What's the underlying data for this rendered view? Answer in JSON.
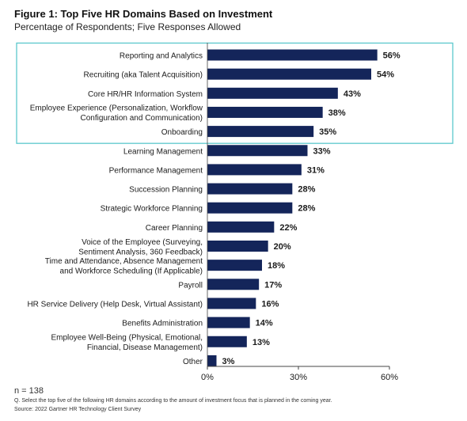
{
  "figure": {
    "title": "Figure 1: Top Five HR Domains Based on Investment",
    "subtitle": "Percentage of Respondents; Five Responses Allowed"
  },
  "chart_data": {
    "type": "bar",
    "orientation": "horizontal",
    "categories": [
      [
        "Reporting and Analytics"
      ],
      [
        "Recruiting (aka Talent Acquisition)"
      ],
      [
        "Core HR/HR Information System"
      ],
      [
        "Employee Experience (Personalization, Workflow",
        "Configuration and Communication)"
      ],
      [
        "Onboarding"
      ],
      [
        "Learning Management"
      ],
      [
        "Performance Management"
      ],
      [
        "Succession Planning"
      ],
      [
        "Strategic Workforce Planning"
      ],
      [
        "Career Planning"
      ],
      [
        "Voice of the Employee (Surveying,",
        "Sentiment Analysis, 360 Feedback)"
      ],
      [
        "Time and Attendance, Absence Management",
        "and Workforce Scheduling (If Applicable)"
      ],
      [
        "Payroll"
      ],
      [
        "HR Service Delivery (Help Desk, Virtual Assistant)"
      ],
      [
        "Benefits Administration"
      ],
      [
        "Employee Well-Being (Physical, Emotional,",
        "Financial, Disease Management)"
      ],
      [
        "Other"
      ]
    ],
    "values": [
      56,
      54,
      43,
      38,
      35,
      33,
      31,
      28,
      28,
      22,
      20,
      18,
      17,
      16,
      14,
      13,
      3
    ],
    "value_labels": [
      "56%",
      "54%",
      "43%",
      "38%",
      "35%",
      "33%",
      "31%",
      "28%",
      "28%",
      "22%",
      "20%",
      "18%",
      "17%",
      "16%",
      "14%",
      "13%",
      "3%"
    ],
    "xlim": [
      0,
      60
    ],
    "xticks": [
      0,
      30,
      60
    ],
    "xtick_labels": [
      "0%",
      "30%",
      "60%"
    ],
    "highlight_top_n": 5,
    "bar_color": "#14255a",
    "highlight_border_color": "#5cc8cc",
    "grid": false
  },
  "footer": {
    "n": "n = 138",
    "question": "Q. Select the top five of the following HR domains according to the amount of investment focus that is planned in the coming year.",
    "source": "Source: 2022 Gartner HR Technology Client Survey"
  }
}
